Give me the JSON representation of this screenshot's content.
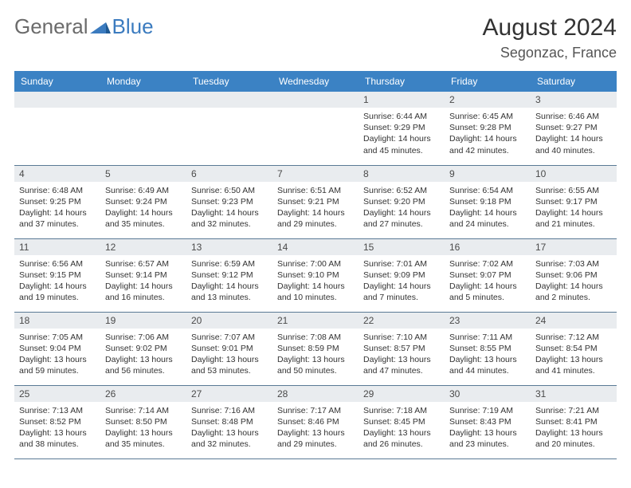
{
  "brand": {
    "part1": "General",
    "part2": "Blue"
  },
  "title": "August 2024",
  "location": "Segonzac, France",
  "colors": {
    "header_bg": "#3b82c4",
    "daynum_bg": "#e9ecef",
    "border": "#5a7a95",
    "logo_gray": "#6b6b6b",
    "logo_blue": "#3b7bbf"
  },
  "weekdays": [
    "Sunday",
    "Monday",
    "Tuesday",
    "Wednesday",
    "Thursday",
    "Friday",
    "Saturday"
  ],
  "weeks": [
    [
      {
        "n": "",
        "sr": "",
        "ss": "",
        "dl": ""
      },
      {
        "n": "",
        "sr": "",
        "ss": "",
        "dl": ""
      },
      {
        "n": "",
        "sr": "",
        "ss": "",
        "dl": ""
      },
      {
        "n": "",
        "sr": "",
        "ss": "",
        "dl": ""
      },
      {
        "n": "1",
        "sr": "Sunrise: 6:44 AM",
        "ss": "Sunset: 9:29 PM",
        "dl": "Daylight: 14 hours and 45 minutes."
      },
      {
        "n": "2",
        "sr": "Sunrise: 6:45 AM",
        "ss": "Sunset: 9:28 PM",
        "dl": "Daylight: 14 hours and 42 minutes."
      },
      {
        "n": "3",
        "sr": "Sunrise: 6:46 AM",
        "ss": "Sunset: 9:27 PM",
        "dl": "Daylight: 14 hours and 40 minutes."
      }
    ],
    [
      {
        "n": "4",
        "sr": "Sunrise: 6:48 AM",
        "ss": "Sunset: 9:25 PM",
        "dl": "Daylight: 14 hours and 37 minutes."
      },
      {
        "n": "5",
        "sr": "Sunrise: 6:49 AM",
        "ss": "Sunset: 9:24 PM",
        "dl": "Daylight: 14 hours and 35 minutes."
      },
      {
        "n": "6",
        "sr": "Sunrise: 6:50 AM",
        "ss": "Sunset: 9:23 PM",
        "dl": "Daylight: 14 hours and 32 minutes."
      },
      {
        "n": "7",
        "sr": "Sunrise: 6:51 AM",
        "ss": "Sunset: 9:21 PM",
        "dl": "Daylight: 14 hours and 29 minutes."
      },
      {
        "n": "8",
        "sr": "Sunrise: 6:52 AM",
        "ss": "Sunset: 9:20 PM",
        "dl": "Daylight: 14 hours and 27 minutes."
      },
      {
        "n": "9",
        "sr": "Sunrise: 6:54 AM",
        "ss": "Sunset: 9:18 PM",
        "dl": "Daylight: 14 hours and 24 minutes."
      },
      {
        "n": "10",
        "sr": "Sunrise: 6:55 AM",
        "ss": "Sunset: 9:17 PM",
        "dl": "Daylight: 14 hours and 21 minutes."
      }
    ],
    [
      {
        "n": "11",
        "sr": "Sunrise: 6:56 AM",
        "ss": "Sunset: 9:15 PM",
        "dl": "Daylight: 14 hours and 19 minutes."
      },
      {
        "n": "12",
        "sr": "Sunrise: 6:57 AM",
        "ss": "Sunset: 9:14 PM",
        "dl": "Daylight: 14 hours and 16 minutes."
      },
      {
        "n": "13",
        "sr": "Sunrise: 6:59 AM",
        "ss": "Sunset: 9:12 PM",
        "dl": "Daylight: 14 hours and 13 minutes."
      },
      {
        "n": "14",
        "sr": "Sunrise: 7:00 AM",
        "ss": "Sunset: 9:10 PM",
        "dl": "Daylight: 14 hours and 10 minutes."
      },
      {
        "n": "15",
        "sr": "Sunrise: 7:01 AM",
        "ss": "Sunset: 9:09 PM",
        "dl": "Daylight: 14 hours and 7 minutes."
      },
      {
        "n": "16",
        "sr": "Sunrise: 7:02 AM",
        "ss": "Sunset: 9:07 PM",
        "dl": "Daylight: 14 hours and 5 minutes."
      },
      {
        "n": "17",
        "sr": "Sunrise: 7:03 AM",
        "ss": "Sunset: 9:06 PM",
        "dl": "Daylight: 14 hours and 2 minutes."
      }
    ],
    [
      {
        "n": "18",
        "sr": "Sunrise: 7:05 AM",
        "ss": "Sunset: 9:04 PM",
        "dl": "Daylight: 13 hours and 59 minutes."
      },
      {
        "n": "19",
        "sr": "Sunrise: 7:06 AM",
        "ss": "Sunset: 9:02 PM",
        "dl": "Daylight: 13 hours and 56 minutes."
      },
      {
        "n": "20",
        "sr": "Sunrise: 7:07 AM",
        "ss": "Sunset: 9:01 PM",
        "dl": "Daylight: 13 hours and 53 minutes."
      },
      {
        "n": "21",
        "sr": "Sunrise: 7:08 AM",
        "ss": "Sunset: 8:59 PM",
        "dl": "Daylight: 13 hours and 50 minutes."
      },
      {
        "n": "22",
        "sr": "Sunrise: 7:10 AM",
        "ss": "Sunset: 8:57 PM",
        "dl": "Daylight: 13 hours and 47 minutes."
      },
      {
        "n": "23",
        "sr": "Sunrise: 7:11 AM",
        "ss": "Sunset: 8:55 PM",
        "dl": "Daylight: 13 hours and 44 minutes."
      },
      {
        "n": "24",
        "sr": "Sunrise: 7:12 AM",
        "ss": "Sunset: 8:54 PM",
        "dl": "Daylight: 13 hours and 41 minutes."
      }
    ],
    [
      {
        "n": "25",
        "sr": "Sunrise: 7:13 AM",
        "ss": "Sunset: 8:52 PM",
        "dl": "Daylight: 13 hours and 38 minutes."
      },
      {
        "n": "26",
        "sr": "Sunrise: 7:14 AM",
        "ss": "Sunset: 8:50 PM",
        "dl": "Daylight: 13 hours and 35 minutes."
      },
      {
        "n": "27",
        "sr": "Sunrise: 7:16 AM",
        "ss": "Sunset: 8:48 PM",
        "dl": "Daylight: 13 hours and 32 minutes."
      },
      {
        "n": "28",
        "sr": "Sunrise: 7:17 AM",
        "ss": "Sunset: 8:46 PM",
        "dl": "Daylight: 13 hours and 29 minutes."
      },
      {
        "n": "29",
        "sr": "Sunrise: 7:18 AM",
        "ss": "Sunset: 8:45 PM",
        "dl": "Daylight: 13 hours and 26 minutes."
      },
      {
        "n": "30",
        "sr": "Sunrise: 7:19 AM",
        "ss": "Sunset: 8:43 PM",
        "dl": "Daylight: 13 hours and 23 minutes."
      },
      {
        "n": "31",
        "sr": "Sunrise: 7:21 AM",
        "ss": "Sunset: 8:41 PM",
        "dl": "Daylight: 13 hours and 20 minutes."
      }
    ]
  ]
}
